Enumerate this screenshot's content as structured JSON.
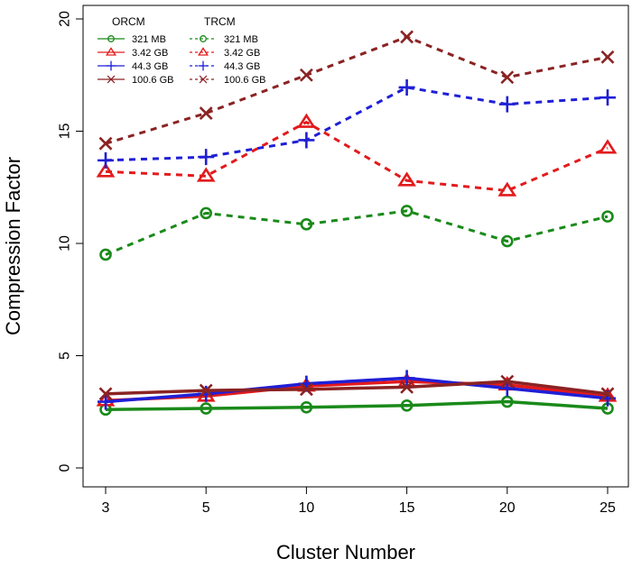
{
  "chart_data": {
    "type": "line",
    "title": "",
    "xlabel": "Cluster Number",
    "ylabel": "Compression Factor",
    "x": [
      3,
      5,
      10,
      15,
      20,
      25
    ],
    "x_tick_labels": [
      "3",
      "5",
      "10",
      "15",
      "20",
      "25"
    ],
    "y_ticks": [
      0,
      5,
      10,
      15,
      20
    ],
    "y_tick_labels": [
      "0",
      "5",
      "10",
      "15",
      "20"
    ],
    "ylim": [
      0,
      20
    ],
    "x_scale": "categorical-evenly-spaced",
    "grid": false,
    "legend": {
      "placement": "top-left",
      "groups": [
        {
          "title": "ORCM",
          "style": "solid",
          "entries": [
            "321 MB",
            "3.42 GB",
            "44.3 GB",
            "100.6 GB"
          ]
        },
        {
          "title": "TRCM",
          "style": "dashed",
          "entries": [
            "321 MB",
            "3.42 GB",
            "44.3 GB",
            "100.6 GB"
          ]
        }
      ]
    },
    "series": [
      {
        "name": "321 MB",
        "group": "ORCM",
        "style": "solid",
        "marker": "circle",
        "color": "#1a8a1a",
        "values": [
          2.6,
          2.65,
          2.7,
          2.78,
          2.95,
          2.65
        ]
      },
      {
        "name": "3.42 GB",
        "group": "ORCM",
        "style": "solid",
        "marker": "triangle",
        "color": "#e31a1c",
        "values": [
          3.0,
          3.2,
          3.65,
          3.85,
          3.7,
          3.2
        ]
      },
      {
        "name": "44.3 GB",
        "group": "ORCM",
        "style": "solid",
        "marker": "plus",
        "color": "#1f1fd6",
        "values": [
          2.95,
          3.3,
          3.75,
          4.0,
          3.55,
          3.1
        ]
      },
      {
        "name": "100.6 GB",
        "group": "ORCM",
        "style": "solid",
        "marker": "cross",
        "color": "#8b2323",
        "values": [
          3.3,
          3.45,
          3.5,
          3.6,
          3.85,
          3.3
        ]
      },
      {
        "name": "321 MB",
        "group": "TRCM",
        "style": "dashed",
        "marker": "circle",
        "color": "#1a8a1a",
        "values": [
          9.5,
          11.35,
          10.85,
          11.45,
          10.1,
          11.2
        ]
      },
      {
        "name": "3.42 GB",
        "group": "TRCM",
        "style": "dashed",
        "marker": "triangle",
        "color": "#e31a1c",
        "values": [
          13.2,
          13.0,
          15.4,
          12.8,
          12.35,
          14.25
        ]
      },
      {
        "name": "44.3 GB",
        "group": "TRCM",
        "style": "dashed",
        "marker": "plus",
        "color": "#1f1fd6",
        "values": [
          13.7,
          13.85,
          14.6,
          16.95,
          16.2,
          16.5
        ]
      },
      {
        "name": "100.6 GB",
        "group": "TRCM",
        "style": "dashed",
        "marker": "cross",
        "color": "#8b2323",
        "values": [
          14.45,
          15.8,
          17.5,
          19.2,
          17.4,
          18.3
        ]
      }
    ]
  }
}
